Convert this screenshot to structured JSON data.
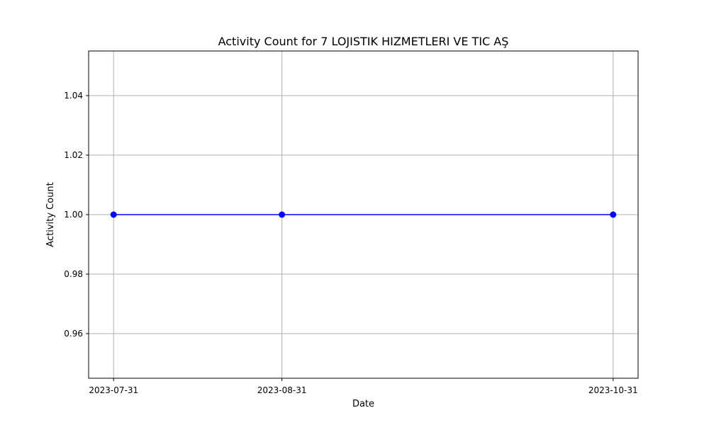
{
  "chart_data": {
    "type": "line",
    "title": "Activity Count for 7 LOJISTIK HIZMETLERI VE TIC AŞ",
    "xlabel": "Date",
    "ylabel": "Activity Count",
    "x": [
      "2023-07-31",
      "2023-08-31",
      "2023-10-31"
    ],
    "x_tick_labels": [
      "2023-07-31",
      "2023-08-31",
      "2023-10-31"
    ],
    "series": [
      {
        "values": [
          1.0,
          1.0,
          1.0
        ],
        "color": "#0000ff",
        "marker": "circle"
      }
    ],
    "y_ticks": [
      0.96,
      0.98,
      1.0,
      1.02,
      1.04
    ],
    "y_tick_labels": [
      "0.96",
      "0.98",
      "1.00",
      "1.02",
      "1.04"
    ],
    "ylim": [
      0.945,
      1.055
    ],
    "grid": true,
    "legend": "none"
  }
}
